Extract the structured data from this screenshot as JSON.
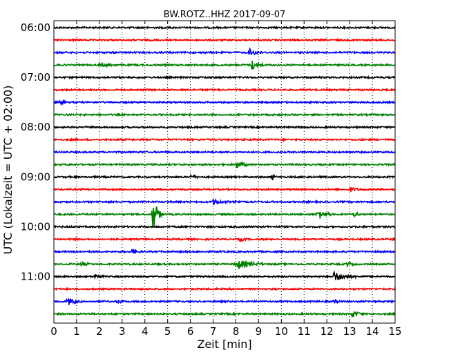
{
  "chart_data": {
    "type": "line",
    "title": "BW.ROTZ..HHZ 2017-09-07",
    "xlabel": "Zeit  [min]",
    "ylabel": "UTC (Lokalzeit = UTC + 02:00)",
    "xlim": [
      0,
      15
    ],
    "x_ticks": [
      "0",
      "1",
      "2",
      "3",
      "4",
      "5",
      "6",
      "7",
      "8",
      "9",
      "10",
      "11",
      "12",
      "13",
      "14",
      "15"
    ],
    "y_tick_labels": [
      "06:00",
      "07:00",
      "08:00",
      "09:00",
      "10:00",
      "11:00"
    ],
    "row_interval_min": 15,
    "row_count": 24,
    "row_colors": [
      "#000000",
      "#ff0000",
      "#0000ff",
      "#008000"
    ],
    "grid": "vertical dotted",
    "events": [
      {
        "row": 2,
        "x": 8.6,
        "amp": 5,
        "dur": 0.6
      },
      {
        "row": 3,
        "x": 2.0,
        "amp": 2.5,
        "dur": 0.8
      },
      {
        "row": 3,
        "x": 8.7,
        "amp": 7,
        "dur": 0.6
      },
      {
        "row": 6,
        "x": 0.3,
        "amp": 3,
        "dur": 0.3
      },
      {
        "row": 11,
        "x": 8.0,
        "amp": 6,
        "dur": 0.6
      },
      {
        "row": 12,
        "x": 6.0,
        "amp": 3,
        "dur": 0.4
      },
      {
        "row": 12,
        "x": 9.6,
        "amp": 4,
        "dur": 0.2
      },
      {
        "row": 13,
        "x": 13.0,
        "amp": 3,
        "dur": 0.6
      },
      {
        "row": 14,
        "x": 7.0,
        "amp": 4,
        "dur": 0.7
      },
      {
        "row": 15,
        "x": 4.35,
        "amp": 30,
        "dur": 0.4
      },
      {
        "row": 15,
        "x": 11.6,
        "amp": 8,
        "dur": 0.6
      },
      {
        "row": 15,
        "x": 13.2,
        "amp": 3,
        "dur": 0.3
      },
      {
        "row": 17,
        "x": 8.2,
        "amp": 3,
        "dur": 0.3
      },
      {
        "row": 18,
        "x": 3.4,
        "amp": 5,
        "dur": 0.4
      },
      {
        "row": 19,
        "x": 1.2,
        "amp": 3,
        "dur": 0.4
      },
      {
        "row": 19,
        "x": 8.0,
        "amp": 7,
        "dur": 1.2
      },
      {
        "row": 19,
        "x": 12.9,
        "amp": 3,
        "dur": 0.4
      },
      {
        "row": 20,
        "x": 1.8,
        "amp": 4,
        "dur": 0.4
      },
      {
        "row": 20,
        "x": 12.3,
        "amp": 7,
        "dur": 1.0
      },
      {
        "row": 22,
        "x": 0.6,
        "amp": 6,
        "dur": 0.6
      },
      {
        "row": 22,
        "x": 2.8,
        "amp": 3,
        "dur": 0.3
      },
      {
        "row": 22,
        "x": 12.3,
        "amp": 3,
        "dur": 0.3
      },
      {
        "row": 23,
        "x": 13.1,
        "amp": 5,
        "dur": 0.5
      }
    ]
  }
}
